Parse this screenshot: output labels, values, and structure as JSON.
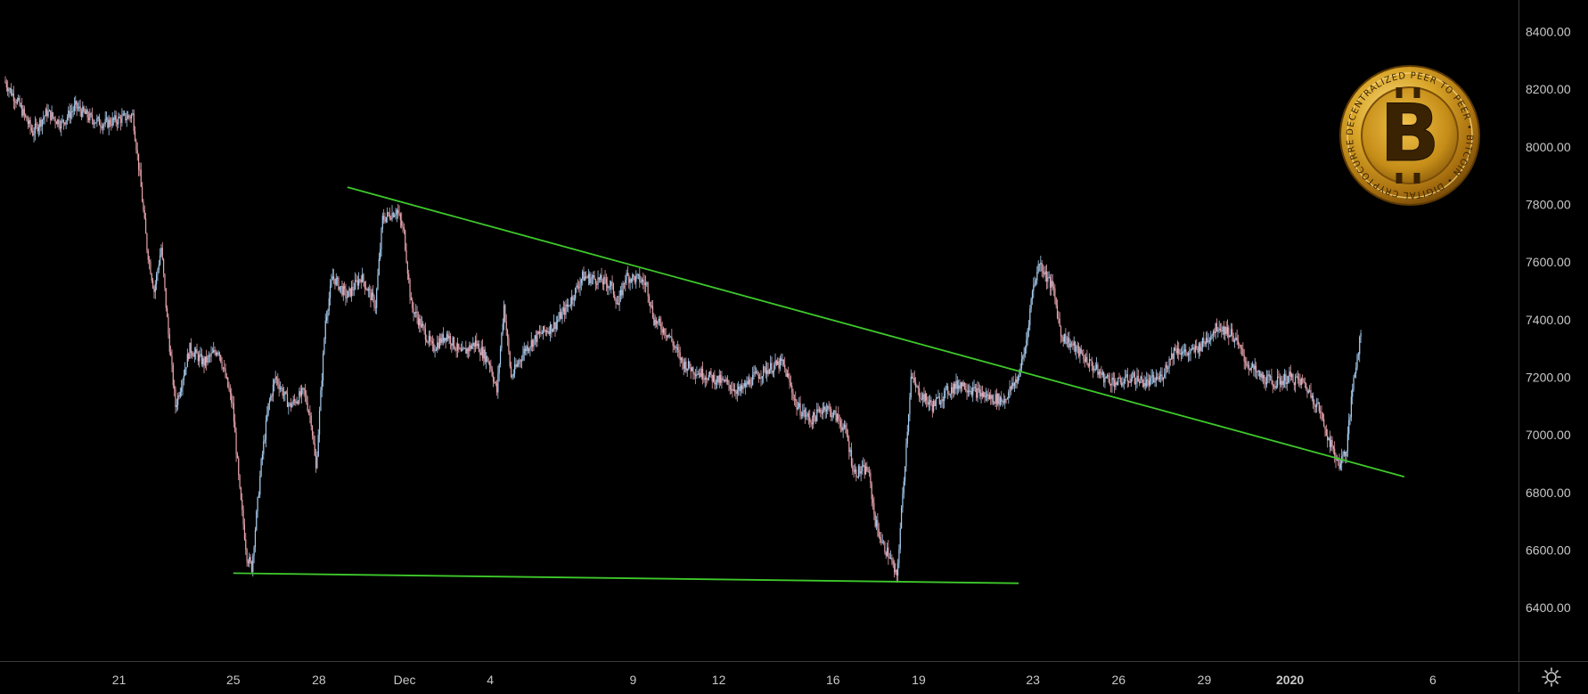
{
  "chart_data": {
    "type": "candlestick",
    "x_axis": {
      "tick_labels": [
        {
          "label": "21",
          "date": "2019-11-21"
        },
        {
          "label": "25",
          "date": "2019-11-25"
        },
        {
          "label": "28",
          "date": "2019-11-28"
        },
        {
          "label": "Dec",
          "date": "2019-12-01"
        },
        {
          "label": "4",
          "date": "2019-12-04"
        },
        {
          "label": "9",
          "date": "2019-12-09"
        },
        {
          "label": "12",
          "date": "2019-12-12"
        },
        {
          "label": "16",
          "date": "2019-12-16"
        },
        {
          "label": "19",
          "date": "2019-12-19"
        },
        {
          "label": "23",
          "date": "2019-12-23"
        },
        {
          "label": "26",
          "date": "2019-12-26"
        },
        {
          "label": "29",
          "date": "2019-12-29"
        },
        {
          "label": "2020",
          "date": "2020-01-01",
          "bold": true
        },
        {
          "label": "6",
          "date": "2020-01-06"
        }
      ],
      "range": [
        "2019-11-16 20:00",
        "2020-01-09 00:00"
      ]
    },
    "y_axis": {
      "tick_labels": [
        "6400.00",
        "6600.00",
        "6800.00",
        "7000.00",
        "7200.00",
        "7400.00",
        "7600.00",
        "7800.00",
        "8000.00",
        "8200.00",
        "8400.00"
      ],
      "range": [
        6215,
        8510
      ],
      "position": "right"
    },
    "price_path": [
      [
        "2019-11-17 00:00",
        8230
      ],
      [
        "2019-11-17 12:00",
        8150
      ],
      [
        "2019-11-18 00:00",
        8050
      ],
      [
        "2019-11-18 12:00",
        8120
      ],
      [
        "2019-11-19 00:00",
        8080
      ],
      [
        "2019-11-19 12:00",
        8140
      ],
      [
        "2019-11-20 00:00",
        8100
      ],
      [
        "2019-11-20 12:00",
        8080
      ],
      [
        "2019-11-21 12:00",
        8110
      ],
      [
        "2019-11-21 18:00",
        7900
      ],
      [
        "2019-11-22 00:00",
        7650
      ],
      [
        "2019-11-22 06:00",
        7500
      ],
      [
        "2019-11-22 12:00",
        7650
      ],
      [
        "2019-11-22 18:00",
        7350
      ],
      [
        "2019-11-23 00:00",
        7100
      ],
      [
        "2019-11-23 12:00",
        7300
      ],
      [
        "2019-11-24 00:00",
        7250
      ],
      [
        "2019-11-24 12:00",
        7300
      ],
      [
        "2019-11-25 00:00",
        7100
      ],
      [
        "2019-11-25 06:00",
        6800
      ],
      [
        "2019-11-25 12:00",
        6580
      ],
      [
        "2019-11-25 16:00",
        6540
      ],
      [
        "2019-11-26 00:00",
        6900
      ],
      [
        "2019-11-26 06:00",
        7100
      ],
      [
        "2019-11-26 12:00",
        7200
      ],
      [
        "2019-11-27 00:00",
        7100
      ],
      [
        "2019-11-27 12:00",
        7150
      ],
      [
        "2019-11-27 18:00",
        7050
      ],
      [
        "2019-11-27 22:00",
        6880
      ],
      [
        "2019-11-28 06:00",
        7400
      ],
      [
        "2019-11-28 12:00",
        7550
      ],
      [
        "2019-11-29 00:00",
        7480
      ],
      [
        "2019-11-29 12:00",
        7550
      ],
      [
        "2019-11-30 00:00",
        7450
      ],
      [
        "2019-11-30 06:00",
        7750
      ],
      [
        "2019-11-30 18:00",
        7780
      ],
      [
        "2019-12-01 00:00",
        7700
      ],
      [
        "2019-12-01 06:00",
        7450
      ],
      [
        "2019-12-01 12:00",
        7400
      ],
      [
        "2019-12-02 00:00",
        7300
      ],
      [
        "2019-12-02 12:00",
        7350
      ],
      [
        "2019-12-03 00:00",
        7280
      ],
      [
        "2019-12-03 12:00",
        7320
      ],
      [
        "2019-12-04 00:00",
        7250
      ],
      [
        "2019-12-04 06:00",
        7150
      ],
      [
        "2019-12-04 12:00",
        7450
      ],
      [
        "2019-12-04 18:00",
        7200
      ],
      [
        "2019-12-05 06:00",
        7300
      ],
      [
        "2019-12-05 18:00",
        7350
      ],
      [
        "2019-12-06 06:00",
        7380
      ],
      [
        "2019-12-06 18:00",
        7450
      ],
      [
        "2019-12-07 06:00",
        7550
      ],
      [
        "2019-12-07 18:00",
        7540
      ],
      [
        "2019-12-08 06:00",
        7520
      ],
      [
        "2019-12-08 12:00",
        7450
      ],
      [
        "2019-12-08 18:00",
        7550
      ],
      [
        "2019-12-09 06:00",
        7540
      ],
      [
        "2019-12-09 12:00",
        7520
      ],
      [
        "2019-12-09 18:00",
        7400
      ],
      [
        "2019-12-10 06:00",
        7350
      ],
      [
        "2019-12-10 18:00",
        7250
      ],
      [
        "2019-12-11 06:00",
        7220
      ],
      [
        "2019-12-11 18:00",
        7200
      ],
      [
        "2019-12-12 06:00",
        7180
      ],
      [
        "2019-12-12 18:00",
        7150
      ],
      [
        "2019-12-13 06:00",
        7200
      ],
      [
        "2019-12-13 18:00",
        7230
      ],
      [
        "2019-12-14 06:00",
        7250
      ],
      [
        "2019-12-14 12:00",
        7180
      ],
      [
        "2019-12-14 18:00",
        7100
      ],
      [
        "2019-12-15 06:00",
        7050
      ],
      [
        "2019-12-15 18:00",
        7100
      ],
      [
        "2019-12-16 06:00",
        7050
      ],
      [
        "2019-12-16 12:00",
        7000
      ],
      [
        "2019-12-16 18:00",
        6870
      ],
      [
        "2019-12-17 06:00",
        6880
      ],
      [
        "2019-12-17 12:00",
        6700
      ],
      [
        "2019-12-17 18:00",
        6620
      ],
      [
        "2019-12-18 00:00",
        6580
      ],
      [
        "2019-12-18 06:00",
        6500
      ],
      [
        "2019-12-18 12:00",
        6850
      ],
      [
        "2019-12-18 18:00",
        7200
      ],
      [
        "2019-12-19 00:00",
        7150
      ],
      [
        "2019-12-19 12:00",
        7100
      ],
      [
        "2019-12-20 00:00",
        7150
      ],
      [
        "2019-12-20 12:00",
        7180
      ],
      [
        "2019-12-21 00:00",
        7150
      ],
      [
        "2019-12-21 12:00",
        7130
      ],
      [
        "2019-12-22 00:00",
        7120
      ],
      [
        "2019-12-22 12:00",
        7200
      ],
      [
        "2019-12-22 18:00",
        7300
      ],
      [
        "2019-12-23 00:00",
        7500
      ],
      [
        "2019-12-23 06:00",
        7600
      ],
      [
        "2019-12-23 12:00",
        7550
      ],
      [
        "2019-12-23 18:00",
        7500
      ],
      [
        "2019-12-24 00:00",
        7350
      ],
      [
        "2019-12-24 12:00",
        7300
      ],
      [
        "2019-12-25 00:00",
        7250
      ],
      [
        "2019-12-25 12:00",
        7200
      ],
      [
        "2019-12-26 00:00",
        7180
      ],
      [
        "2019-12-26 12:00",
        7200
      ],
      [
        "2019-12-27 00:00",
        7180
      ],
      [
        "2019-12-27 12:00",
        7200
      ],
      [
        "2019-12-28 00:00",
        7300
      ],
      [
        "2019-12-28 12:00",
        7280
      ],
      [
        "2019-12-29 00:00",
        7320
      ],
      [
        "2019-12-29 12:00",
        7380
      ],
      [
        "2019-12-30 00:00",
        7350
      ],
      [
        "2019-12-30 12:00",
        7250
      ],
      [
        "2019-12-31 00:00",
        7200
      ],
      [
        "2019-12-31 12:00",
        7180
      ],
      [
        "2020-01-01 00:00",
        7200
      ],
      [
        "2020-01-01 12:00",
        7180
      ],
      [
        "2020-01-02 00:00",
        7100
      ],
      [
        "2020-01-02 12:00",
        6950
      ],
      [
        "2020-01-02 18:00",
        6900
      ],
      [
        "2020-01-03 00:00",
        6950
      ],
      [
        "2020-01-03 06:00",
        7200
      ],
      [
        "2020-01-03 12:00",
        7350
      ]
    ],
    "price_path_mode": "interpolated",
    "trendlines": [
      {
        "color": "#3ec92b",
        "p1": [
          "2019-11-29 00:00",
          7860
        ],
        "p2": [
          "2020-01-05 00:00",
          6855
        ]
      },
      {
        "color": "#3ec92b",
        "p1": [
          "2019-11-25 00:00",
          6520
        ],
        "p2": [
          "2019-12-22 12:00",
          6485
        ]
      }
    ],
    "colors": {
      "background": "#000000",
      "up_candle": "#a8cdf0",
      "down_candle": "#e8a4ae",
      "axis_text": "#c8c8c8",
      "axis_line": "#3a3a3a"
    },
    "grid": false
  },
  "logo": {
    "symbol": "B",
    "ring_text": "DECENTRALIZED PEER TO PEER • BITCOIN • DIGITAL CRYPTOCURRENCY •"
  },
  "icons": {
    "settings": "gear-icon"
  }
}
